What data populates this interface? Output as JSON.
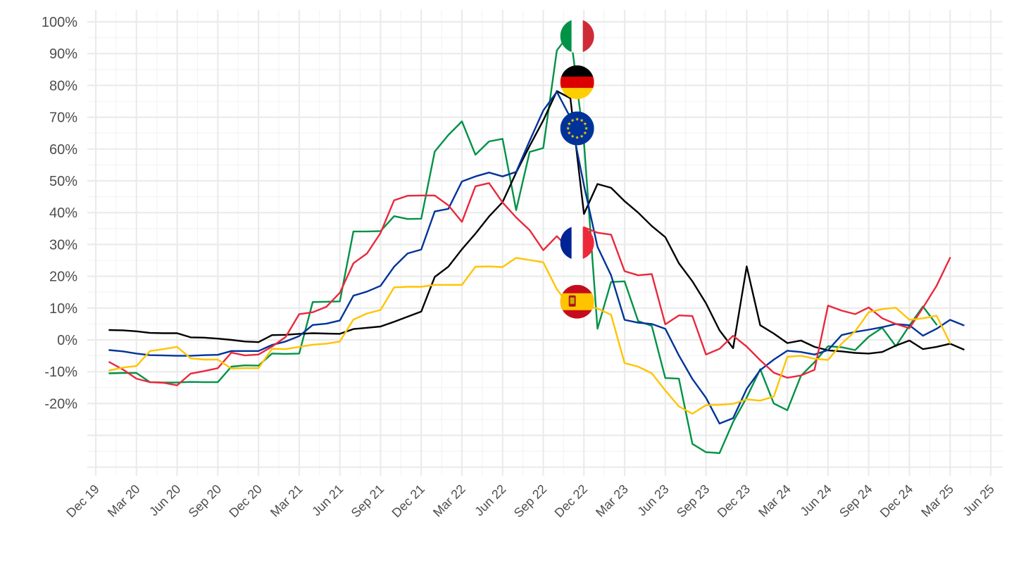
{
  "chart_data": {
    "type": "line",
    "title": "",
    "xlabel": "",
    "ylabel": "",
    "grid": true,
    "legend": "flag icons at the series peaks",
    "x_ticks": [
      "Dec 19",
      "Mar 20",
      "Jun 20",
      "Sep 20",
      "Dec 20",
      "Mar 21",
      "Jun 21",
      "Sep 21",
      "Dec 21",
      "Mar 22",
      "Jun 22",
      "Sep 22",
      "Dec 22",
      "Mar 23",
      "Jun 23",
      "Sep 23",
      "Dec 23",
      "Mar 24",
      "Jun 24",
      "Sep 24",
      "Dec 24",
      "Mar 25",
      "Jun 25"
    ],
    "y_ticks": [
      "100%",
      "90%",
      "80%",
      "70%",
      "60%",
      "50%",
      "40%",
      "30%",
      "20%",
      "10%",
      "0%",
      "-10%",
      "-20%"
    ],
    "y_tick_values": [
      100,
      90,
      80,
      70,
      60,
      50,
      40,
      30,
      20,
      10,
      0,
      -10,
      -20
    ],
    "ylim": [
      -42,
      104
    ],
    "x_range": [
      "2019-12",
      "2025-06"
    ],
    "first_month": "2020-01",
    "series": [
      {
        "flag": "italy",
        "color": "#009246",
        "values": [
          -10.5,
          -10.4,
          -10.4,
          -13.3,
          -13.4,
          -13.4,
          -13.2,
          -13.3,
          -13.3,
          -8.4,
          -8,
          -8.1,
          -4.3,
          -4.4,
          -4.3,
          11.9,
          12,
          12.1,
          34.1,
          34.1,
          34.2,
          38.9,
          38,
          38.1,
          59.2,
          64.4,
          68.7,
          58.2,
          62.4,
          63.2,
          40.8,
          59.1,
          60.3,
          91,
          96.6,
          62.1,
          3.5,
          18.2,
          18.4,
          5.9,
          4.4,
          -12,
          -12.2,
          -32.7,
          -35.3,
          -35.6,
          -25.8,
          -18.1,
          -9.2,
          -20,
          -22.1,
          -11.3,
          -7,
          -2,
          -2.3,
          -3.2,
          1,
          3.8,
          -2,
          4.5,
          10.5,
          4.8
        ]
      },
      {
        "flag": "germany",
        "color": "#000000",
        "values": [
          3.1,
          3,
          2.7,
          2.2,
          2.1,
          2.1,
          0.8,
          0.7,
          0.4,
          0,
          -0.5,
          -0.7,
          1.5,
          1.6,
          1.9,
          2.1,
          2,
          1.9,
          3.4,
          3.8,
          4.2,
          5.7,
          7.3,
          8.9,
          19.8,
          23,
          28.5,
          33.4,
          38.8,
          43.3,
          52.6,
          61,
          69,
          78.2,
          76,
          39.6,
          49,
          47.8,
          43.6,
          40,
          35.8,
          32.3,
          24.1,
          18.4,
          11.5,
          3,
          -2.6,
          23.1,
          4.6,
          2,
          -1,
          -0.2,
          -2.2,
          -3.3,
          -3.6,
          -4.1,
          -4.3,
          -3.8,
          -1.8,
          -0.2,
          -2.9,
          -2.2,
          -1.2,
          -3
        ]
      },
      {
        "flag": "eu",
        "color": "#003399",
        "values": [
          -3.2,
          -3.6,
          -4.3,
          -4.8,
          -4.9,
          -5,
          -5,
          -4.8,
          -4.7,
          -3.5,
          -3.5,
          -3.5,
          -1.6,
          -0.5,
          1.2,
          4.7,
          5.1,
          6.1,
          13.9,
          15.2,
          17,
          23,
          27.2,
          28.4,
          40.4,
          41.2,
          49.8,
          51.4,
          52.6,
          51.4,
          52.8,
          62.6,
          72.1,
          78,
          69.9,
          48.6,
          29.3,
          20.3,
          6.3,
          5.4,
          5,
          3.5,
          -4.9,
          -12.3,
          -18.2,
          -26.3,
          -24.6,
          -15.4,
          -9.5,
          -6.2,
          -3.4,
          -3.8,
          -4.6,
          -3.2,
          1.5,
          2.5,
          3.2,
          4,
          5,
          4.6,
          1.3,
          3.5,
          6.3,
          4.6
        ]
      },
      {
        "flag": "france",
        "color": "#e9283d",
        "values": [
          -7,
          -9.3,
          -12.2,
          -13.3,
          -13.5,
          -14.3,
          -10.6,
          -9.8,
          -8.9,
          -4,
          -4.9,
          -4.6,
          -2.1,
          0.9,
          8.1,
          8.7,
          10.4,
          14.8,
          24.1,
          27.2,
          33.6,
          43.9,
          45.3,
          45.4,
          45.4,
          42.3,
          37.1,
          48.3,
          49.3,
          43.2,
          38.5,
          34.5,
          28.2,
          32.6,
          28.1,
          35.4,
          33.7,
          33.1,
          21.6,
          20.3,
          20.7,
          4.9,
          7.7,
          7.5,
          -4.6,
          -2.8,
          1.3,
          -2.1,
          -6.4,
          -10.3,
          -11.9,
          -11.2,
          -9.4,
          10.8,
          9.2,
          8.1,
          10.2,
          6.8,
          5,
          3.7,
          10.1,
          17,
          25.8
        ]
      },
      {
        "flag": "spain",
        "color": "#ffc400",
        "values": [
          -9.6,
          -8.7,
          -8.2,
          -3.5,
          -2.9,
          -2.2,
          -5.8,
          -6.2,
          -6.2,
          -9,
          -8.9,
          -8.9,
          -2.8,
          -2.9,
          -2.2,
          -1.5,
          -1.2,
          -0.5,
          6.4,
          8.3,
          9.4,
          16.5,
          16.7,
          16.7,
          17.3,
          17.3,
          17.3,
          23,
          23.1,
          22.9,
          25.8,
          25.1,
          24.4,
          15.9,
          10.4,
          10.7,
          9.9,
          7.9,
          -7.3,
          -8.4,
          -10.5,
          -15.9,
          -20.9,
          -23.2,
          -20.5,
          -20.4,
          -20.1,
          -18.7,
          -19.1,
          -17.8,
          -5.3,
          -5,
          -5.9,
          -6.3,
          -1.2,
          2.7,
          8.7,
          9.7,
          10.1,
          6.3,
          6.8,
          7.6,
          -1
        ]
      }
    ]
  }
}
